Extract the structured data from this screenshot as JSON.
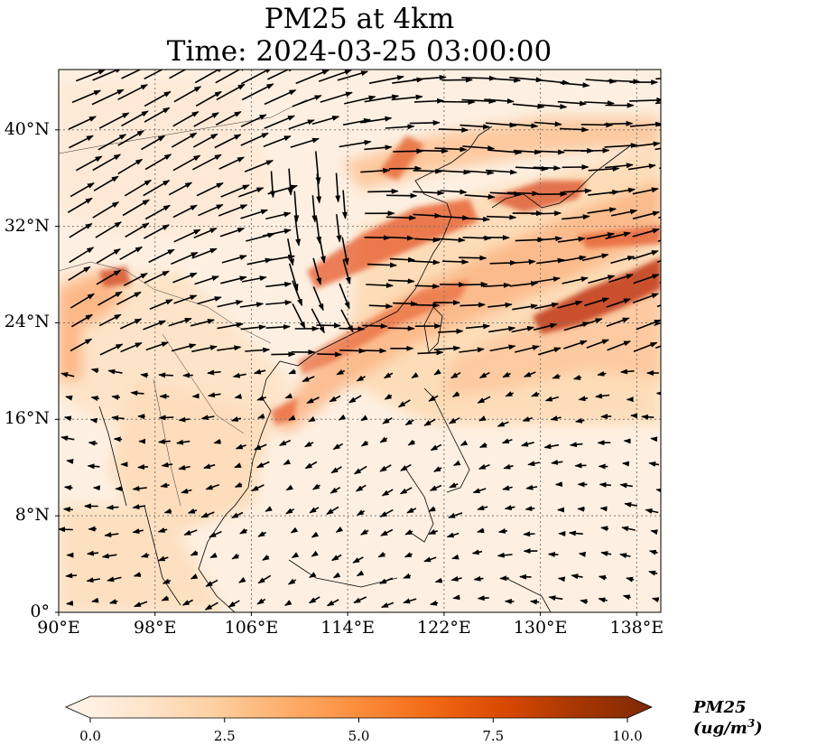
{
  "title_line1": "PM25 at 4km",
  "title_line2": "Time: 2024-03-25 03:00:00",
  "lat_ticks": [
    "40°N",
    "32°N",
    "24°N",
    "16°N",
    "8°N",
    "0°"
  ],
  "lon_ticks": [
    "90°E",
    "98°E",
    "106°E",
    "114°E",
    "122°E",
    "130°E",
    "138°E"
  ],
  "lat_values": [
    40,
    32,
    24,
    16,
    8,
    0
  ],
  "lon_values": [
    90,
    98,
    106,
    114,
    122,
    130,
    138
  ],
  "extent": {
    "lon_min": 90,
    "lon_max": 140,
    "lat_min": 0,
    "lat_max": 45
  },
  "colorbar": {
    "ticks": [
      "0.0",
      "2.5",
      "5.0",
      "7.5",
      "10.0"
    ],
    "min": 0,
    "max": 10,
    "label": "PM25 (ug/m",
    "label_sup": "3",
    "label_end": ")",
    "colormap": [
      "#fff5eb",
      "#fee6ce",
      "#fdd0a2",
      "#fdae6b",
      "#fd8d3c",
      "#f16913",
      "#d94801",
      "#a63603",
      "#7f2704"
    ]
  },
  "gridline_style": "dotted",
  "vector_field": "wind arrows"
}
